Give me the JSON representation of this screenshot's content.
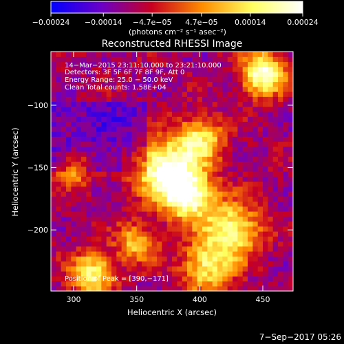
{
  "chart_data": {
    "type": "heatmap",
    "title": "Reconstructed RHESSI Image",
    "xlabel": "Heliocentric X (arcsec)",
    "ylabel": "Heliocentric Y (arcsec)",
    "xlim": [
      282,
      474
    ],
    "ylim": [
      -249,
      -57
    ],
    "x_ticks": [
      300,
      350,
      400,
      450
    ],
    "y_ticks": [
      -100,
      -150,
      -200
    ],
    "colorbar": {
      "ticks": [
        {
          "value": -0.00024,
          "label": "−0.00024"
        },
        {
          "value": -0.00014,
          "label": "−0.00014"
        },
        {
          "value": -4.7e-05,
          "label": "−4.7e−05"
        },
        {
          "value": 4.7e-05,
          "label": "4.7e−05"
        },
        {
          "value": 0.00014,
          "label": "0.00014"
        },
        {
          "value": 0.00024,
          "label": "0.00024"
        }
      ],
      "range": [
        -0.00024,
        0.00024
      ],
      "units": "(photons cm⁻² s⁻¹ asec⁻²)",
      "colors": [
        "#0000ff",
        "#6a00c8",
        "#c80020",
        "#ff8c00",
        "#ffff60",
        "#ffffff"
      ]
    },
    "annotations": [
      "14−Mar−2015 23:11:10.000 to 23:21:10.000",
      "Detectors: 3F 5F 6F 7F 8F 9F, Att 0",
      "Energy Range: 25.0 − 50.0 keV",
      "Clean     Total counts: 1.58E+04"
    ],
    "peak_label": "Position of Peak = [390,−171]",
    "peak": {
      "x": 390,
      "y": -171
    },
    "bright_regions": [
      {
        "x": 390,
        "y": -171,
        "amp": 1.0,
        "sigma": 14
      },
      {
        "x": 370,
        "y": -150,
        "amp": 0.85,
        "sigma": 16
      },
      {
        "x": 400,
        "y": -128,
        "amp": 0.7,
        "sigma": 13
      },
      {
        "x": 425,
        "y": -200,
        "amp": 0.75,
        "sigma": 16
      },
      {
        "x": 450,
        "y": -75,
        "amp": 0.9,
        "sigma": 12
      },
      {
        "x": 315,
        "y": -235,
        "amp": 0.75,
        "sigma": 12
      },
      {
        "x": 405,
        "y": -230,
        "amp": 0.65,
        "sigma": 14
      },
      {
        "x": 300,
        "y": -150,
        "amp": 0.5,
        "sigma": 10
      },
      {
        "x": 350,
        "y": -210,
        "amp": 0.55,
        "sigma": 11
      }
    ],
    "grid": false
  },
  "footer": {
    "timestamp": "7−Sep−2017 05:26"
  }
}
